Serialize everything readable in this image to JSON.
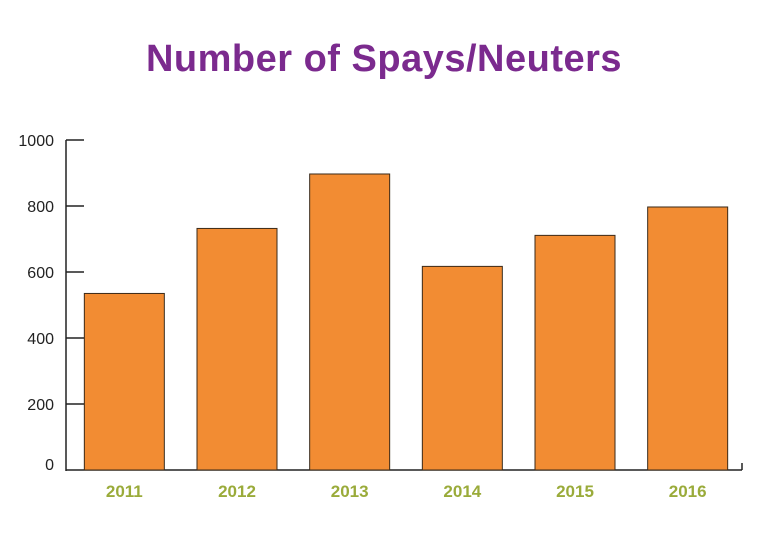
{
  "chart_data": {
    "type": "bar",
    "title": "Number of Spays/Neuters",
    "categories": [
      "2011",
      "2012",
      "2013",
      "2014",
      "2015",
      "2016"
    ],
    "values": [
      535,
      732,
      897,
      617,
      711,
      797
    ],
    "ylim": [
      0,
      1000
    ],
    "yticks": [
      "0",
      "200",
      "400",
      "600",
      "800",
      "1000"
    ],
    "grid": false,
    "legend": "none",
    "colors": {
      "bar": "#f28c33",
      "bar_outline": "#3a2a1a",
      "title": "#7b2a8e",
      "xtick": "#9aab3a",
      "axis": "#222222"
    }
  }
}
